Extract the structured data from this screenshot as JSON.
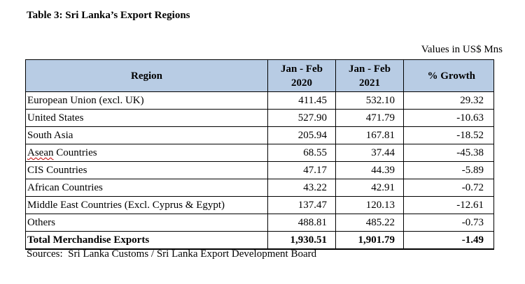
{
  "title": "Table 3: Sri Lanka’s Export Regions",
  "units": "Values in US$ Mns",
  "headers": {
    "region": "Region",
    "col2020_line1": "Jan - Feb",
    "col2020_line2": "2020",
    "col2021_line1": "Jan - Feb",
    "col2021_line2": "2021",
    "growth": "% Growth"
  },
  "rows": [
    {
      "region": "European Union (excl. UK)",
      "v2020": "411.45",
      "v2021": "532.10",
      "growth": "29.32"
    },
    {
      "region": "United States",
      "v2020": "527.90",
      "v2021": "471.79",
      "growth": "-10.63"
    },
    {
      "region": "South Asia",
      "v2020": "205.94",
      "v2021": "167.81",
      "growth": "-18.52"
    },
    {
      "region_marked": "Asean",
      "region_rest": " Countries",
      "v2020": "68.55",
      "v2021": "37.44",
      "growth": "-45.38"
    },
    {
      "region": "CIS Countries",
      "v2020": "47.17",
      "v2021": "44.39",
      "growth": "-5.89"
    },
    {
      "region": "African Countries",
      "v2020": "43.22",
      "v2021": "42.91",
      "growth": "-0.72"
    },
    {
      "region": "Middle East Countries (Excl. Cyprus & Egypt)",
      "v2020": "137.47",
      "v2021": "120.13",
      "growth": "-12.61"
    },
    {
      "region": "Others",
      "v2020": "488.81",
      "v2021": "485.22",
      "growth": "-0.73"
    }
  ],
  "total": {
    "region": "Total Merchandise Exports",
    "v2020": "1,930.51",
    "v2021": "1,901.79",
    "growth": "-1.49"
  },
  "source": "Sources:  Sri Lanka Customs / Sri Lanka Export Development Board",
  "colors": {
    "header_background": "#b8cce4",
    "spellcheck_underline": "#c00000",
    "border": "#000000"
  }
}
